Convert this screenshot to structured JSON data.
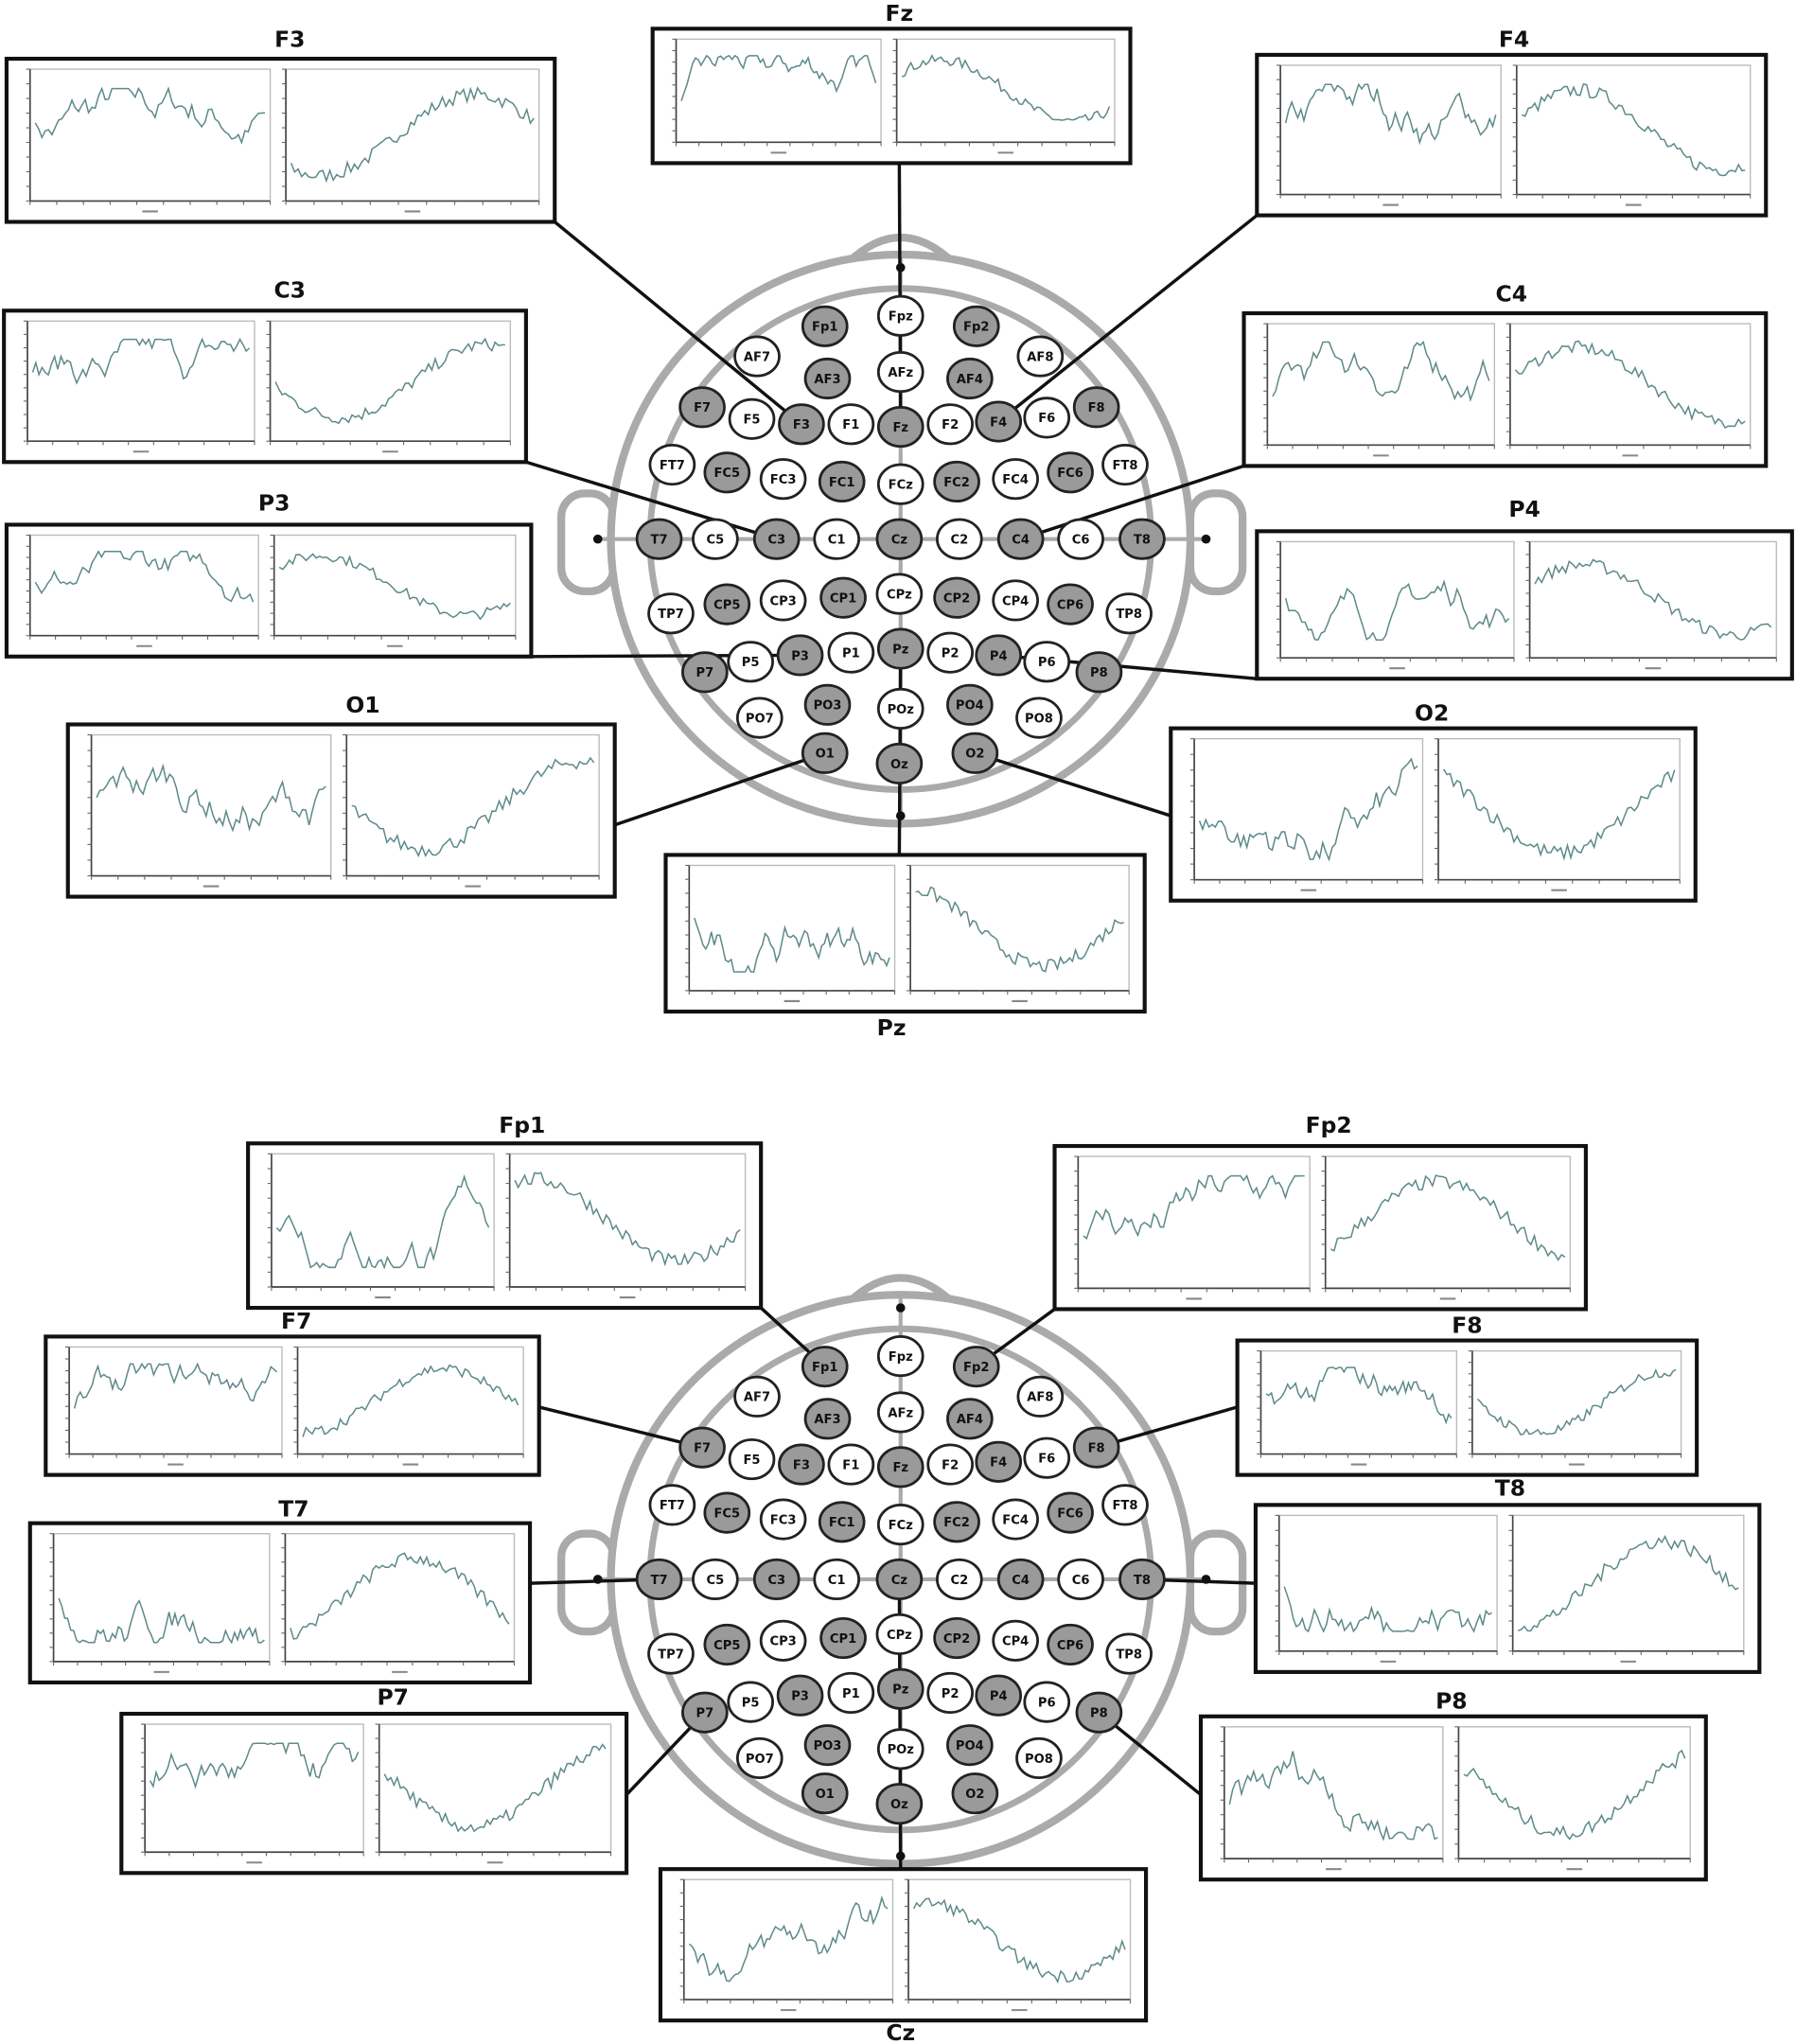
{
  "panels": [
    {
      "boxes": [
        {
          "title": "F3"
        },
        {
          "title": "Fz"
        },
        {
          "title": "F4"
        },
        {
          "title": "C3"
        },
        {
          "title": "C4"
        },
        {
          "title": "P3"
        },
        {
          "title": "P4"
        },
        {
          "title": "O1"
        },
        {
          "title": "O2"
        },
        {
          "title": "Pz"
        }
      ],
      "electrodes": [
        {
          "label": "Fp1",
          "active": true
        },
        {
          "label": "Fpz",
          "active": false
        },
        {
          "label": "Fp2",
          "active": true
        },
        {
          "label": "AF7",
          "active": false
        },
        {
          "label": "AF3",
          "active": true
        },
        {
          "label": "AFz",
          "active": false
        },
        {
          "label": "AF4",
          "active": true
        },
        {
          "label": "AF8",
          "active": false
        },
        {
          "label": "F7",
          "active": true
        },
        {
          "label": "F5",
          "active": false
        },
        {
          "label": "F3",
          "active": true
        },
        {
          "label": "F1",
          "active": false
        },
        {
          "label": "Fz",
          "active": true
        },
        {
          "label": "F2",
          "active": false
        },
        {
          "label": "F4",
          "active": true
        },
        {
          "label": "F6",
          "active": false
        },
        {
          "label": "F8",
          "active": true
        },
        {
          "label": "FT7",
          "active": false
        },
        {
          "label": "FC5",
          "active": true
        },
        {
          "label": "FC3",
          "active": false
        },
        {
          "label": "FC1",
          "active": true
        },
        {
          "label": "FCz",
          "active": false
        },
        {
          "label": "FC2",
          "active": true
        },
        {
          "label": "FC4",
          "active": false
        },
        {
          "label": "FC6",
          "active": true
        },
        {
          "label": "FT8",
          "active": false
        },
        {
          "label": "T7",
          "active": true
        },
        {
          "label": "C5",
          "active": false
        },
        {
          "label": "C3",
          "active": true
        },
        {
          "label": "C1",
          "active": false
        },
        {
          "label": "Cz",
          "active": true
        },
        {
          "label": "C2",
          "active": false
        },
        {
          "label": "C4",
          "active": true
        },
        {
          "label": "C6",
          "active": false
        },
        {
          "label": "T8",
          "active": true
        },
        {
          "label": "TP7",
          "active": false
        },
        {
          "label": "CP5",
          "active": true
        },
        {
          "label": "CP3",
          "active": false
        },
        {
          "label": "CP1",
          "active": true
        },
        {
          "label": "CPz",
          "active": false
        },
        {
          "label": "CP2",
          "active": true
        },
        {
          "label": "CP4",
          "active": false
        },
        {
          "label": "CP6",
          "active": true
        },
        {
          "label": "TP8",
          "active": false
        },
        {
          "label": "P7",
          "active": true
        },
        {
          "label": "P5",
          "active": false
        },
        {
          "label": "P3",
          "active": true
        },
        {
          "label": "P1",
          "active": false
        },
        {
          "label": "Pz",
          "active": true
        },
        {
          "label": "P2",
          "active": false
        },
        {
          "label": "P4",
          "active": true
        },
        {
          "label": "P6",
          "active": false
        },
        {
          "label": "P8",
          "active": true
        },
        {
          "label": "PO7",
          "active": false
        },
        {
          "label": "PO3",
          "active": true
        },
        {
          "label": "POz",
          "active": false
        },
        {
          "label": "PO4",
          "active": true
        },
        {
          "label": "PO8",
          "active": false
        },
        {
          "label": "O1",
          "active": true
        },
        {
          "label": "Oz",
          "active": true
        },
        {
          "label": "O2",
          "active": true
        }
      ]
    },
    {
      "boxes": [
        {
          "title": "Fp1"
        },
        {
          "title": "Fp2"
        },
        {
          "title": "F7"
        },
        {
          "title": "F8"
        },
        {
          "title": "T7"
        },
        {
          "title": "T8"
        },
        {
          "title": "P7"
        },
        {
          "title": "P8"
        },
        {
          "title": "Cz"
        }
      ],
      "electrodes": [
        {
          "label": "Fp1",
          "active": true
        },
        {
          "label": "Fpz",
          "active": false
        },
        {
          "label": "Fp2",
          "active": true
        },
        {
          "label": "AF7",
          "active": false
        },
        {
          "label": "AF3",
          "active": true
        },
        {
          "label": "AFz",
          "active": false
        },
        {
          "label": "AF4",
          "active": true
        },
        {
          "label": "AF8",
          "active": false
        },
        {
          "label": "F7",
          "active": true
        },
        {
          "label": "F5",
          "active": false
        },
        {
          "label": "F3",
          "active": true
        },
        {
          "label": "F1",
          "active": false
        },
        {
          "label": "Fz",
          "active": true
        },
        {
          "label": "F2",
          "active": false
        },
        {
          "label": "F4",
          "active": true
        },
        {
          "label": "F6",
          "active": false
        },
        {
          "label": "F8",
          "active": true
        },
        {
          "label": "FT7",
          "active": false
        },
        {
          "label": "FC5",
          "active": true
        },
        {
          "label": "FC3",
          "active": false
        },
        {
          "label": "FC1",
          "active": true
        },
        {
          "label": "FCz",
          "active": false
        },
        {
          "label": "FC2",
          "active": true
        },
        {
          "label": "FC4",
          "active": false
        },
        {
          "label": "FC6",
          "active": true
        },
        {
          "label": "FT8",
          "active": false
        },
        {
          "label": "T7",
          "active": true
        },
        {
          "label": "C5",
          "active": false
        },
        {
          "label": "C3",
          "active": true
        },
        {
          "label": "C1",
          "active": false
        },
        {
          "label": "Cz",
          "active": true
        },
        {
          "label": "C2",
          "active": false
        },
        {
          "label": "C4",
          "active": true
        },
        {
          "label": "C6",
          "active": false
        },
        {
          "label": "T8",
          "active": true
        },
        {
          "label": "TP7",
          "active": false
        },
        {
          "label": "CP5",
          "active": true
        },
        {
          "label": "CP3",
          "active": false
        },
        {
          "label": "CP1",
          "active": true
        },
        {
          "label": "CPz",
          "active": false
        },
        {
          "label": "CP2",
          "active": true
        },
        {
          "label": "CP4",
          "active": false
        },
        {
          "label": "CP6",
          "active": true
        },
        {
          "label": "TP8",
          "active": false
        },
        {
          "label": "P7",
          "active": true
        },
        {
          "label": "P5",
          "active": false
        },
        {
          "label": "P3",
          "active": true
        },
        {
          "label": "P1",
          "active": false
        },
        {
          "label": "Pz",
          "active": true
        },
        {
          "label": "P2",
          "active": false
        },
        {
          "label": "P4",
          "active": true
        },
        {
          "label": "P6",
          "active": false
        },
        {
          "label": "P8",
          "active": true
        },
        {
          "label": "PO7",
          "active": false
        },
        {
          "label": "PO3",
          "active": true
        },
        {
          "label": "POz",
          "active": false
        },
        {
          "label": "PO4",
          "active": true
        },
        {
          "label": "PO8",
          "active": false
        },
        {
          "label": "O1",
          "active": true
        },
        {
          "label": "Oz",
          "active": true
        },
        {
          "label": "O2",
          "active": true
        }
      ]
    }
  ]
}
